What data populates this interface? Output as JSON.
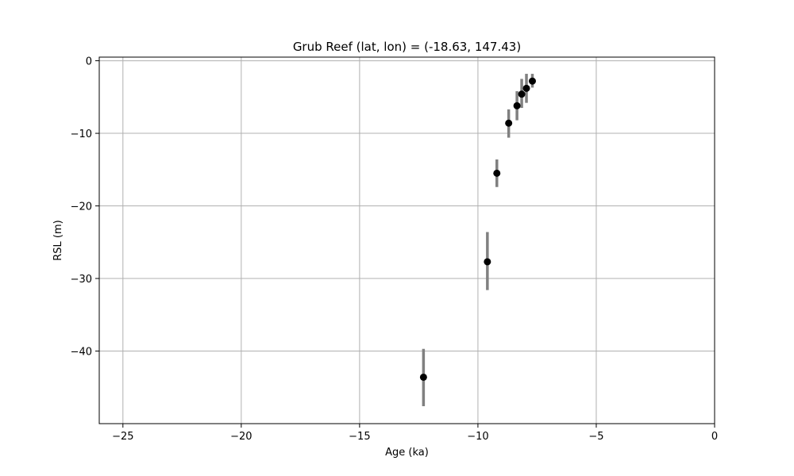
{
  "chart_data": {
    "type": "scatter",
    "title": "Grub Reef (lat, lon) = (-18.63, 147.43)",
    "xlabel": "Age (ka)",
    "ylabel": "RSL (m)",
    "xlim": [
      -26,
      0
    ],
    "ylim": [
      -50,
      0.5
    ],
    "xticks": [
      -25,
      -20,
      -15,
      -10,
      -5,
      0
    ],
    "xtick_labels": [
      "−25",
      "−20",
      "−15",
      "−10",
      "−5",
      "0"
    ],
    "yticks": [
      0,
      -10,
      -20,
      -30,
      -40
    ],
    "ytick_labels": [
      "0",
      "−10",
      "−20",
      "−30",
      "−40"
    ],
    "grid": true,
    "marker_color": "#000000",
    "errorbar_color": "#808080",
    "points": [
      {
        "x": -12.3,
        "y": -43.6,
        "ylow": -47.6,
        "yhigh": -39.7
      },
      {
        "x": -9.6,
        "y": -27.7,
        "ylow": -31.6,
        "yhigh": -23.6
      },
      {
        "x": -9.2,
        "y": -15.5,
        "ylow": -17.4,
        "yhigh": -13.6
      },
      {
        "x": -8.7,
        "y": -8.6,
        "ylow": -10.6,
        "yhigh": -6.7
      },
      {
        "x": -8.35,
        "y": -6.2,
        "ylow": -8.2,
        "yhigh": -4.2
      },
      {
        "x": -8.15,
        "y": -4.6,
        "ylow": -6.5,
        "yhigh": -2.5
      },
      {
        "x": -7.95,
        "y": -3.8,
        "ylow": -5.8,
        "yhigh": -1.8
      },
      {
        "x": -7.7,
        "y": -2.8,
        "ylow": -3.7,
        "yhigh": -1.8
      }
    ]
  }
}
